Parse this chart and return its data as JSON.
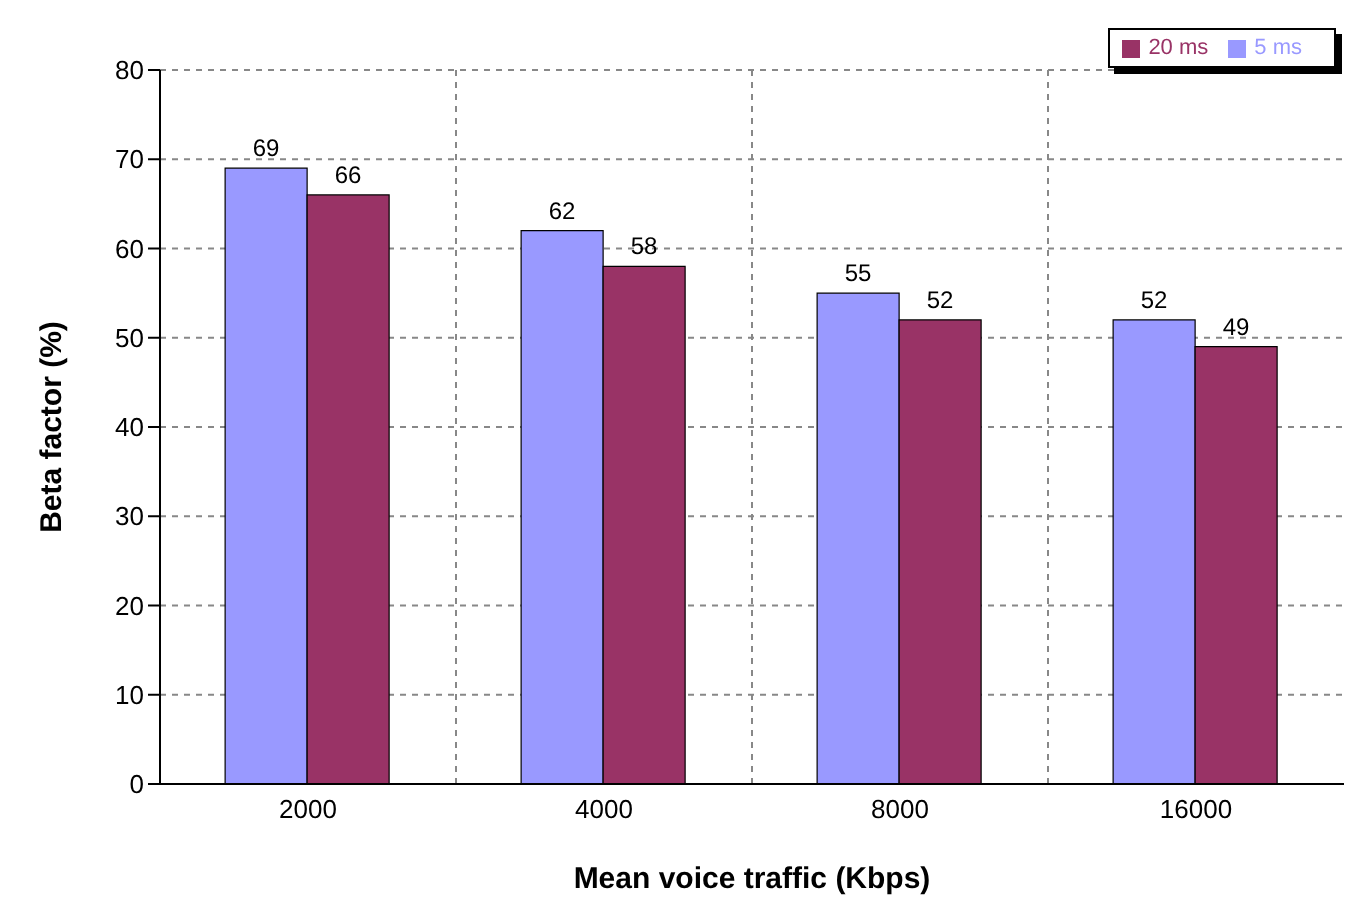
{
  "chart_data": {
    "type": "bar",
    "xlabel": "Mean voice traffic (Kbps)",
    "ylabel": "Beta factor (%)",
    "categories": [
      "2000",
      "4000",
      "8000",
      "16000"
    ],
    "series": [
      {
        "name": "5 ms",
        "color": "#9999ff",
        "values": [
          69,
          62,
          55,
          52
        ]
      },
      {
        "name": "20 ms",
        "color": "#993366",
        "values": [
          66,
          58,
          52,
          49
        ]
      }
    ],
    "ylim": [
      0,
      80
    ],
    "yticks": [
      0,
      10,
      20,
      30,
      40,
      50,
      60,
      70,
      80
    ],
    "grid": true,
    "legend": "top right",
    "data_labels": true
  }
}
